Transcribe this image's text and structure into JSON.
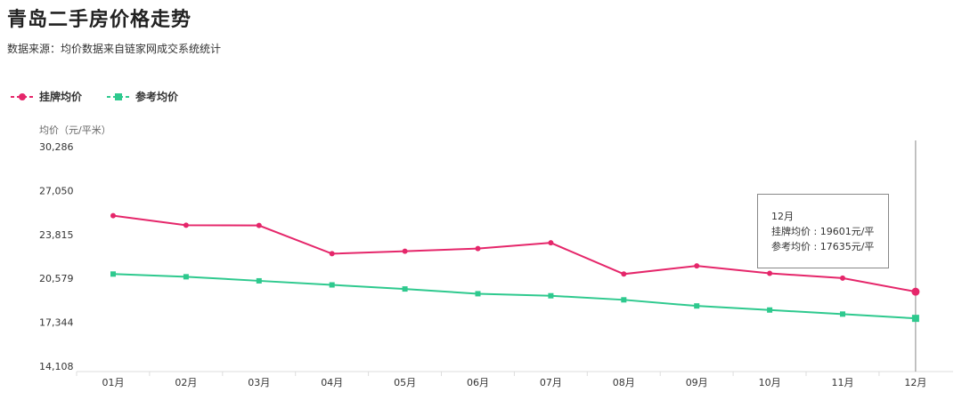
{
  "title": "青岛二手房价格走势",
  "subtitle": "数据来源：均价数据来自链家网成交系统统计",
  "legend": {
    "listing": "挂牌均价",
    "reference": "参考均价"
  },
  "tooltip": {
    "month": "12月",
    "listing_line": "挂牌均价 : 19601元/平",
    "reference_line": "参考均价 : 17635元/平"
  },
  "colors": {
    "listing": "#e5266a",
    "reference": "#2ec98e"
  },
  "chart_data": {
    "type": "line",
    "ylabel": "均价（元/平米）",
    "ylim": [
      14108,
      30286
    ],
    "yticks": [
      "30,286",
      "27,050",
      "23,815",
      "20,579",
      "17,344",
      "14,108"
    ],
    "categories": [
      "01月",
      "02月",
      "03月",
      "04月",
      "05月",
      "06月",
      "07月",
      "08月",
      "09月",
      "10月",
      "11月",
      "12月"
    ],
    "series": [
      {
        "name": "挂牌均价",
        "values": [
          25200,
          24500,
          24480,
          22400,
          22580,
          22780,
          23200,
          20900,
          21500,
          20950,
          20600,
          19601
        ]
      },
      {
        "name": "参考均价",
        "values": [
          20900,
          20700,
          20400,
          20100,
          19800,
          19450,
          19300,
          19000,
          18550,
          18250,
          17950,
          17635
        ]
      }
    ],
    "highlight_index": 11,
    "grid": false,
    "legend_position": "top-left"
  }
}
